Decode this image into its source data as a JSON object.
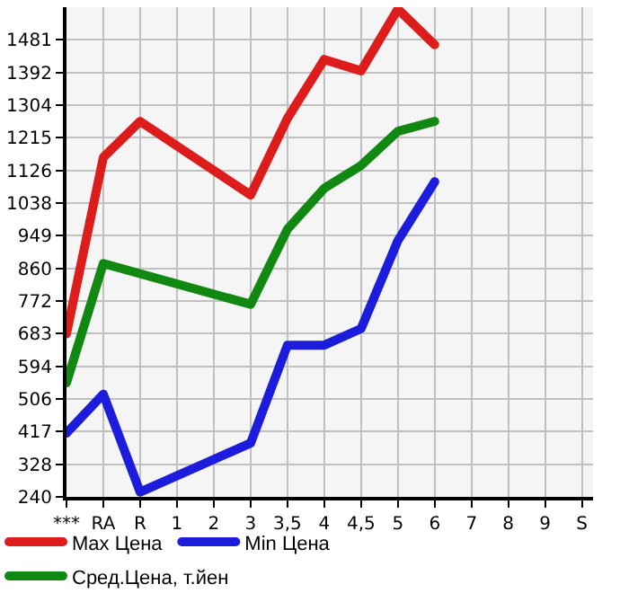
{
  "chart_data": {
    "type": "line",
    "categories": [
      "***",
      "RA",
      "R",
      "1",
      "2",
      "3",
      "3,5",
      "4",
      "4,5",
      "5",
      "6",
      "7",
      "8",
      "9",
      "S"
    ],
    "series": [
      {
        "name": "Max Цена",
        "color": "#dd1c1c",
        "values": [
          683,
          1162,
          1260,
          null,
          null,
          1060,
          1268,
          1428,
          1397,
          1565,
          1468,
          null,
          null,
          null,
          null
        ]
      },
      {
        "name": "Min Цена",
        "color": "#1c1cdd",
        "values": [
          413,
          519,
          253,
          null,
          null,
          386,
          652,
          652,
          697,
          936,
          1096,
          null,
          null,
          null,
          null
        ]
      },
      {
        "name": "Сред.Цена, т.йен",
        "color": "#118811",
        "values": [
          550,
          874,
          null,
          null,
          null,
          763,
          967,
          1078,
          1140,
          1233,
          1260,
          null,
          null,
          null,
          null
        ]
      }
    ],
    "ylim": [
      240,
      1570
    ],
    "yticks": [
      240,
      328,
      417,
      506,
      594,
      683,
      772,
      860,
      949,
      1038,
      1126,
      1215,
      1304,
      1392,
      1481
    ],
    "grid": true,
    "legend": "bottom",
    "marker": "none",
    "line_style": "solid"
  }
}
